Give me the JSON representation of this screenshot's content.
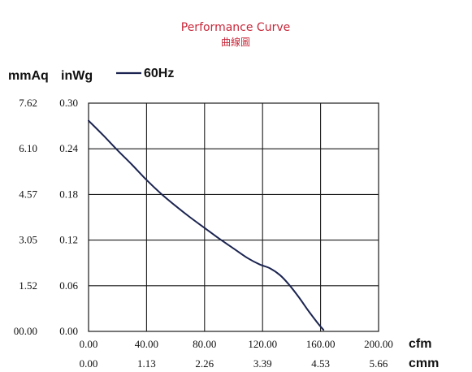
{
  "colors": {
    "title": "#c8283a",
    "curve": "#1b2450",
    "grid": "#1a1a1a",
    "text": "#111111"
  },
  "chart_data": {
    "type": "line",
    "title": "Performance Curve",
    "subtitle": "曲線圖",
    "xlabel": "cfm",
    "xlabel_secondary": "cmm",
    "ylabel": "inWg",
    "ylabel_secondary": "mmAq",
    "xlim": [
      0,
      200
    ],
    "ylim": [
      0,
      0.3
    ],
    "grid": true,
    "legend_placement": "top-left",
    "x_ticks": [
      "0.00",
      "40.00",
      "80.00",
      "120.00",
      "160.00",
      "200.00"
    ],
    "x_ticks_secondary": [
      "0.00",
      "1.13",
      "2.26",
      "3.39",
      "4.53",
      "5.66"
    ],
    "y_ticks": [
      "0.00",
      "0.06",
      "0.12",
      "0.18",
      "0.24",
      "0.30"
    ],
    "y_ticks_secondary": [
      "00.00",
      "1.52",
      "3.05",
      "4.57",
      "6.10",
      "7.62"
    ],
    "series": [
      {
        "name": "60Hz",
        "x": [
          0,
          10,
          20,
          30,
          40,
          50,
          60,
          70,
          80,
          90,
          100,
          110,
          118,
          125,
          132,
          138,
          145,
          152,
          158,
          162
        ],
        "y": [
          0.277,
          0.258,
          0.238,
          0.219,
          0.199,
          0.181,
          0.165,
          0.15,
          0.136,
          0.122,
          0.109,
          0.096,
          0.088,
          0.083,
          0.074,
          0.062,
          0.045,
          0.026,
          0.011,
          0.002
        ]
      }
    ]
  }
}
